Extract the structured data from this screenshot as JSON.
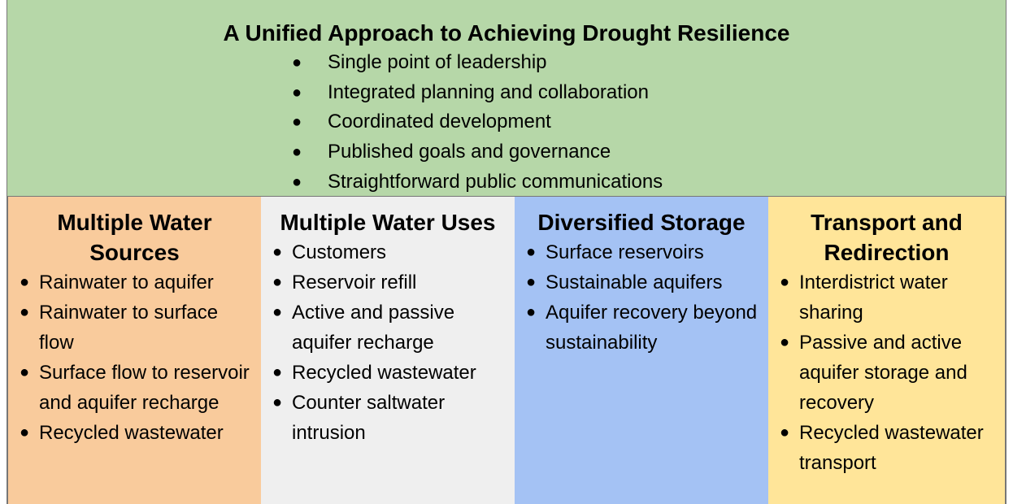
{
  "header": {
    "title": "A Unified Approach to Achieving Drought Resilience",
    "bullets": [
      "Single point of leadership",
      "Integrated planning and collaboration",
      "Coordinated development",
      "Published goals and governance",
      "Straightforward public communications"
    ]
  },
  "columns": [
    {
      "title": "Multiple Water Sources",
      "items": [
        "Rainwater to aquifer",
        "Rainwater to surface flow",
        "Surface flow to reservoir and aquifer recharge",
        "Recycled wastewater"
      ]
    },
    {
      "title": "Multiple Water Uses",
      "items": [
        "Customers",
        "Reservoir refill",
        "Active and passive aquifer recharge",
        "Recycled wastewater",
        "Counter saltwater intrusion"
      ]
    },
    {
      "title": "Diversified Storage",
      "items": [
        "Surface reservoirs",
        "Sustainable aquifers",
        "Aquifer recovery beyond sustainability"
      ]
    },
    {
      "title": "Transport and Redirection",
      "items": [
        "Interdistrict water sharing",
        "Passive and active aquifer storage and recovery",
        "Recycled wastewater transport"
      ]
    }
  ]
}
